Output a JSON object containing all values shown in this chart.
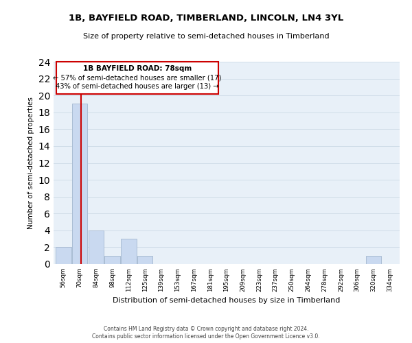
{
  "title_line1": "1B, BAYFIELD ROAD, TIMBERLAND, LINCOLN, LN4 3YL",
  "title_line2": "Size of property relative to semi-detached houses in Timberland",
  "xlabel": "Distribution of semi-detached houses by size in Timberland",
  "ylabel": "Number of semi-detached properties",
  "bin_labels": [
    "56sqm",
    "70sqm",
    "84sqm",
    "98sqm",
    "112sqm",
    "125sqm",
    "139sqm",
    "153sqm",
    "167sqm",
    "181sqm",
    "195sqm",
    "209sqm",
    "223sqm",
    "237sqm",
    "250sqm",
    "264sqm",
    "278sqm",
    "292sqm",
    "306sqm",
    "320sqm",
    "334sqm"
  ],
  "bin_counts": [
    2,
    19,
    4,
    1,
    3,
    1,
    0,
    0,
    0,
    0,
    0,
    0,
    0,
    0,
    0,
    0,
    0,
    0,
    0,
    1,
    0
  ],
  "bar_color": "#c9d9f0",
  "bar_edge_color": "#aabdd4",
  "subject_label": "1B BAYFIELD ROAD: 78sqm",
  "annotation_line1": "← 57% of semi-detached houses are smaller (17)",
  "annotation_line2": "43% of semi-detached houses are larger (13) →",
  "subject_line_color": "#cc0000",
  "annotation_box_edge": "#cc0000",
  "ylim": [
    0,
    24
  ],
  "yticks": [
    0,
    2,
    4,
    6,
    8,
    10,
    12,
    14,
    16,
    18,
    20,
    22,
    24
  ],
  "footnote1": "Contains HM Land Registry data © Crown copyright and database right 2024.",
  "footnote2": "Contains public sector information licensed under the Open Government Licence v3.0.",
  "background_color": "#ffffff",
  "plot_bg_color": "#e8f0f8",
  "grid_color": "#d0dde8"
}
